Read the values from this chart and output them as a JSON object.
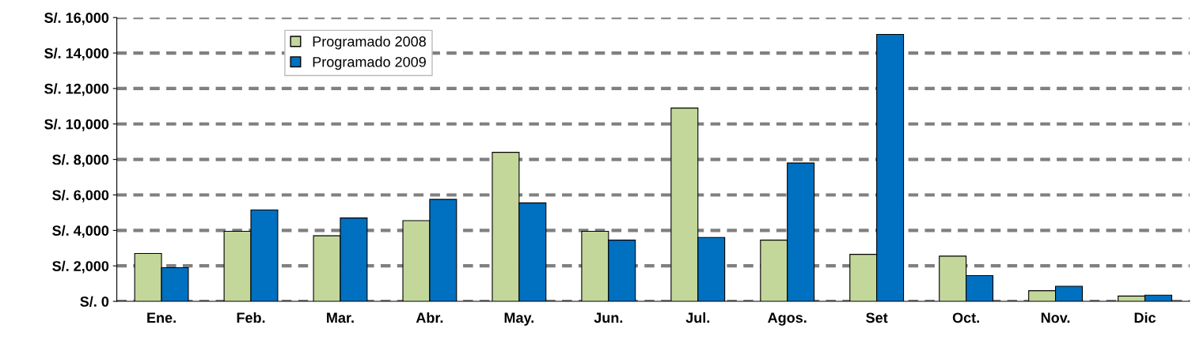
{
  "chart_data": {
    "type": "bar",
    "categories": [
      "Ene.",
      "Feb.",
      "Mar.",
      "Abr.",
      "May.",
      "Jun.",
      "Jul.",
      "Agos.",
      "Set",
      "Oct.",
      "Nov.",
      "Dic"
    ],
    "series": [
      {
        "name": "Programado 2008",
        "color": "#c4d79b",
        "values": [
          2700,
          3950,
          3700,
          4550,
          8400,
          3950,
          10900,
          3450,
          2650,
          2550,
          600,
          300
        ]
      },
      {
        "name": "Programado 2009",
        "color": "#0070c0",
        "values": [
          1900,
          5150,
          4700,
          5750,
          5550,
          3450,
          3600,
          7800,
          15050,
          1450,
          850,
          350
        ]
      }
    ],
    "ylim": [
      0,
      16000
    ],
    "yticks": [
      {
        "value": 0,
        "label": "S/. 0"
      },
      {
        "value": 2000,
        "label": "S/. 2,000"
      },
      {
        "value": 4000,
        "label": "S/. 4,000"
      },
      {
        "value": 6000,
        "label": "S/. 6,000"
      },
      {
        "value": 8000,
        "label": "S/. 8,000"
      },
      {
        "value": 10000,
        "label": "S/. 10,000"
      },
      {
        "value": 12000,
        "label": "S/. 12,000"
      },
      {
        "value": 14000,
        "label": "S/. 14,000"
      },
      {
        "value": 16000,
        "label": "S/. 16,000"
      }
    ],
    "grid": "y",
    "line_style": "dashed",
    "legend": "top left"
  }
}
